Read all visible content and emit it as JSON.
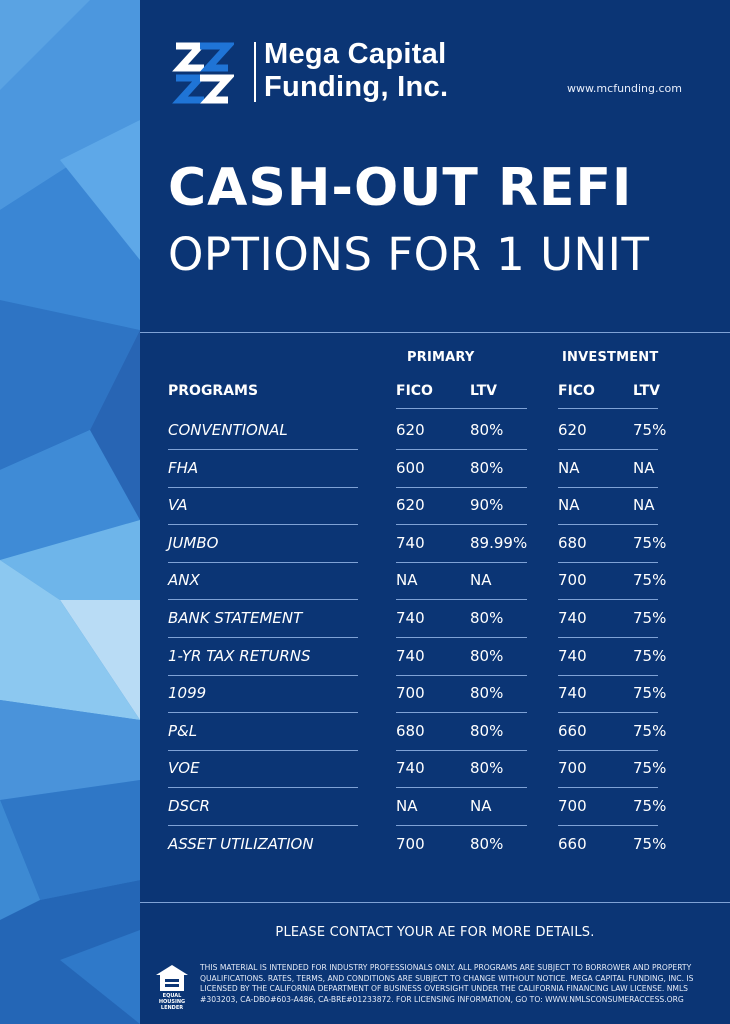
{
  "brand": {
    "name_line1": "Mega Capital",
    "name_line2": "Funding, Inc.",
    "website": "www.mcfunding.com"
  },
  "heading": {
    "line1": "CASH-OUT REFI",
    "line2": "OPTIONS FOR 1 UNIT"
  },
  "table": {
    "group_headers": {
      "primary": "PRIMARY",
      "investment": "INVESTMENT"
    },
    "columns": [
      "PROGRAMS",
      "FICO",
      "LTV",
      "FICO",
      "LTV"
    ],
    "rows": [
      {
        "program": "CONVENTIONAL",
        "primary_fico": "620",
        "primary_ltv": "80%",
        "investment_fico": "620",
        "investment_ltv": "75%"
      },
      {
        "program": "FHA",
        "primary_fico": "600",
        "primary_ltv": "80%",
        "investment_fico": "NA",
        "investment_ltv": "NA"
      },
      {
        "program": "VA",
        "primary_fico": "620",
        "primary_ltv": "90%",
        "investment_fico": "NA",
        "investment_ltv": "NA"
      },
      {
        "program": "JUMBO",
        "primary_fico": "740",
        "primary_ltv": "89.99%",
        "investment_fico": "680",
        "investment_ltv": "75%"
      },
      {
        "program": "ANX",
        "primary_fico": "NA",
        "primary_ltv": "NA",
        "investment_fico": "700",
        "investment_ltv": "75%"
      },
      {
        "program": "BANK STATEMENT",
        "primary_fico": "740",
        "primary_ltv": "80%",
        "investment_fico": "740",
        "investment_ltv": "75%"
      },
      {
        "program": "1-YR TAX RETURNS",
        "primary_fico": "740",
        "primary_ltv": "80%",
        "investment_fico": "740",
        "investment_ltv": "75%"
      },
      {
        "program": "1099",
        "primary_fico": "700",
        "primary_ltv": "80%",
        "investment_fico": "740",
        "investment_ltv": "75%"
      },
      {
        "program": "P&L",
        "primary_fico": "680",
        "primary_ltv": "80%",
        "investment_fico": "660",
        "investment_ltv": "75%"
      },
      {
        "program": "VOE",
        "primary_fico": "740",
        "primary_ltv": "80%",
        "investment_fico": "700",
        "investment_ltv": "75%"
      },
      {
        "program": "DSCR",
        "primary_fico": "NA",
        "primary_ltv": "NA",
        "investment_fico": "700",
        "investment_ltv": "75%"
      },
      {
        "program": "ASSET UTILIZATION",
        "primary_fico": "700",
        "primary_ltv": "80%",
        "investment_fico": "660",
        "investment_ltv": "75%"
      }
    ]
  },
  "footer": {
    "contact": "PLEASE CONTACT YOUR AE FOR MORE DETAILS.",
    "equal_housing_line1": "EQUAL HOUSING",
    "equal_housing_line2": "LENDER",
    "disclaimer": "This material is intended for industry professionals only. All programs are subject to borrower and property qualifications. Rates, terms, and conditions are subject to change without notice. Mega Capital Funding, Inc. is licensed by the California Department of Business Oversight under the California Financing Law License. NMLS #303203, CA-DBO#603-A486, CA-BRE#01233872. For licensing information, go to: www.nmlsconsumeraccess.org"
  },
  "colors": {
    "panel_background": "#0b3575",
    "rule": "#7fa2d6",
    "logo_blue": "#1f74d6",
    "text": "#ffffff"
  }
}
